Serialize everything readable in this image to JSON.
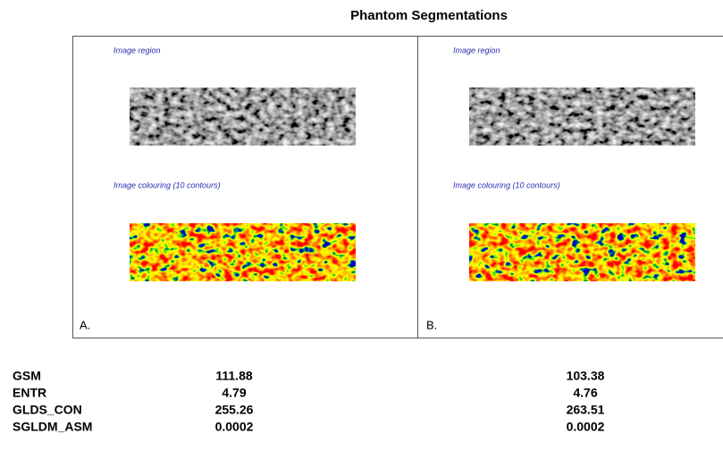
{
  "title": "Phantom Segmentations",
  "panels": [
    {
      "region_caption": "Image region",
      "colouring_caption": "Image colouring (10 contours)",
      "label": "A."
    },
    {
      "region_caption": "Image region",
      "colouring_caption": "Image colouring (10 contours)",
      "label": "B."
    }
  ],
  "table": {
    "rows": [
      [
        "GSM",
        "111.88",
        "103.38"
      ],
      [
        "ENTR",
        "4.79",
        "4.76"
      ],
      [
        "GLDS_CON",
        "255.26",
        "263.51"
      ],
      [
        "SGLDM_ASM",
        "0.0002",
        "0.0002"
      ]
    ]
  }
}
